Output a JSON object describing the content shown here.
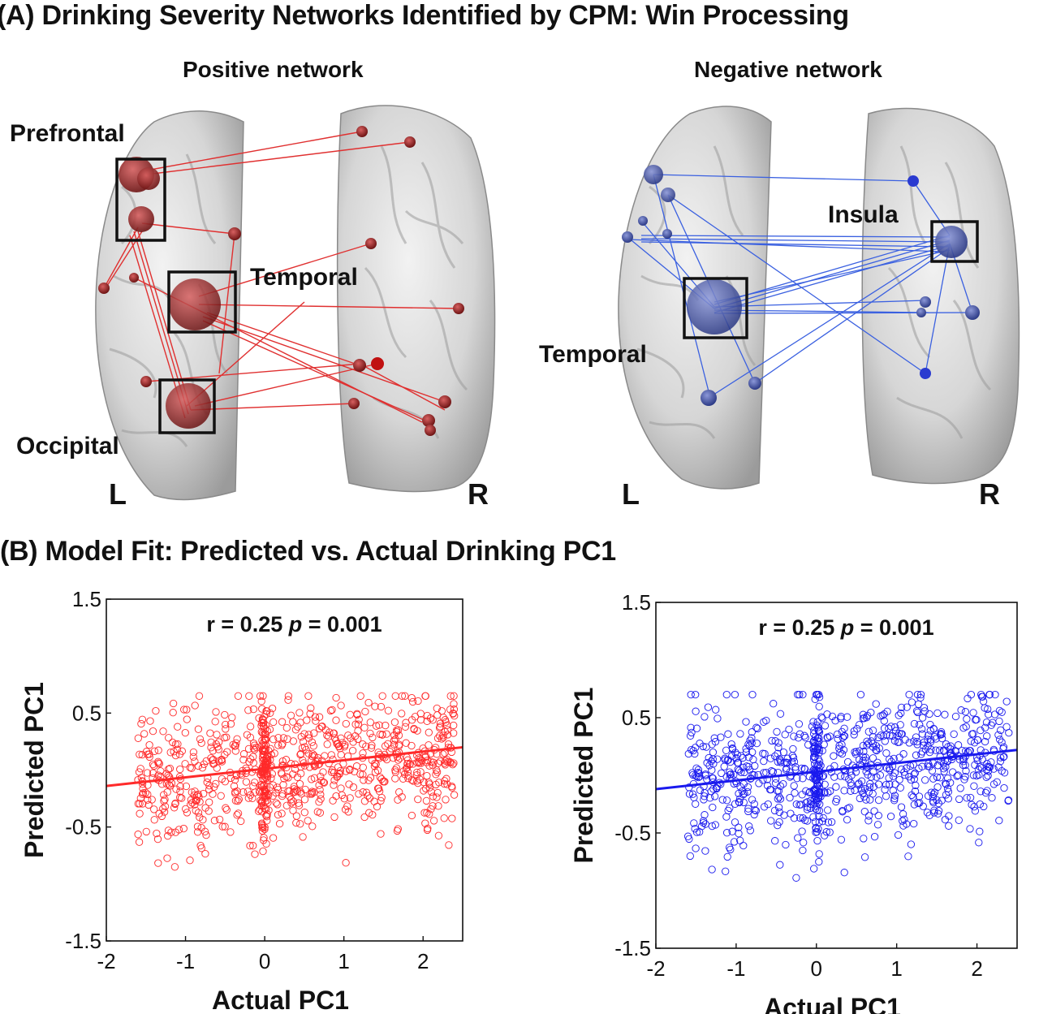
{
  "titles": {
    "section_a": "(A) Drinking Severity Networks Identified by CPM: Win Processing",
    "section_b": "(B) Model Fit: Predicted vs. Actual Drinking PC1"
  },
  "brain_panels": {
    "positive": {
      "title": "Positive network",
      "color": "#c0201c",
      "node_color": "#8e2424",
      "regions": [
        "Prefrontal",
        "Temporal",
        "Occipital"
      ],
      "left_label": "L",
      "right_label": "R"
    },
    "negative": {
      "title": "Negative network",
      "color": "#3a56d8",
      "node_color": "#4a5a9e",
      "regions": [
        "Insula",
        "Temporal"
      ],
      "left_label": "L",
      "right_label": "R"
    }
  },
  "chart_data": [
    {
      "type": "scatter",
      "title": "",
      "annotation": {
        "r_text": "r = 0.25",
        "p_label": "p",
        "p_value": "= 0.001"
      },
      "xlabel": "Actual PC1",
      "ylabel": "Predicted PC1",
      "xlim": [
        -2,
        2.5
      ],
      "ylim": [
        -1.5,
        1.5
      ],
      "xticks": [
        "-2",
        "-1",
        "0",
        "1",
        "2"
      ],
      "yticks": [
        "-1.5",
        "-0.5",
        "0.5",
        "1.5"
      ],
      "color": "#ff2a2a",
      "fit_line": {
        "x": [
          -2,
          2.5
        ],
        "y": [
          -0.14,
          0.2
        ]
      },
      "series": [
        {
          "marker": "open-circle",
          "approx_n": 900,
          "x_range": [
            -1.6,
            2.4
          ],
          "y_range": [
            -0.85,
            0.65
          ]
        }
      ]
    },
    {
      "type": "scatter",
      "title": "",
      "annotation": {
        "r_text": "r = 0.25",
        "p_label": "p",
        "p_value": "= 0.001"
      },
      "xlabel": "Actual PC1",
      "ylabel": "Predicted PC1",
      "xlim": [
        -2,
        2.5
      ],
      "ylim": [
        -1.5,
        1.5
      ],
      "xticks": [
        "-2",
        "-1",
        "0",
        "1",
        "2"
      ],
      "yticks": [
        "-1.5",
        "-0.5",
        "0.5",
        "1.5"
      ],
      "color": "#1a1aee",
      "fit_line": {
        "x": [
          -2,
          2.5
        ],
        "y": [
          -0.12,
          0.22
        ]
      },
      "series": [
        {
          "marker": "open-circle",
          "approx_n": 900,
          "x_range": [
            -1.6,
            2.4
          ],
          "y_range": [
            -0.9,
            0.7
          ]
        }
      ]
    }
  ]
}
